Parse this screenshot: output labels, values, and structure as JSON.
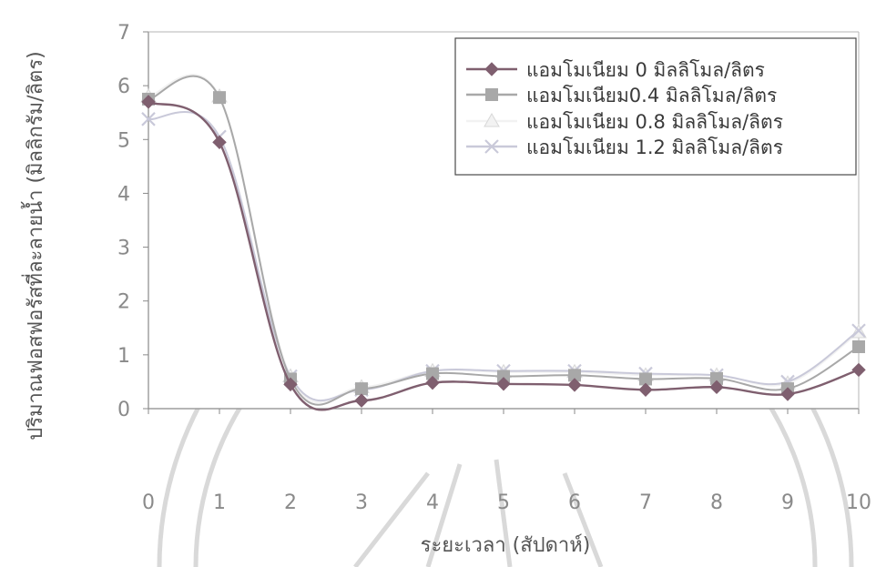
{
  "chart_data": {
    "type": "line",
    "title": "",
    "xlabel": "ระยะเวลา (สัปดาห์)",
    "ylabel": "ปริมาณฟอสฟอรัสที่ละลายน้ำ (มิลลิกรัม/ลิตร)",
    "x": [
      0,
      1,
      2,
      3,
      4,
      5,
      6,
      7,
      8,
      9,
      10
    ],
    "xlim": [
      0,
      10
    ],
    "ylim": [
      0,
      7
    ],
    "xticks": [
      "0",
      "1",
      "2",
      "3",
      "4",
      "5",
      "6",
      "7",
      "8",
      "9",
      "10"
    ],
    "yticks": [
      "0",
      "1",
      "2",
      "3",
      "4",
      "5",
      "6",
      "7"
    ],
    "grid": false,
    "legend_position": "top-right",
    "series": [
      {
        "name": "แอมโมเนียม 0 มิลลิโมล/ลิตร",
        "marker": "diamond",
        "color": "#7f5f6f",
        "values": [
          5.7,
          4.95,
          0.45,
          0.15,
          0.48,
          0.46,
          0.44,
          0.35,
          0.4,
          0.27,
          0.72
        ]
      },
      {
        "name": "แอมโมเนียม0.4 มิลลิโมล/ลิตร",
        "marker": "square",
        "color": "#a8a8a8",
        "values": [
          5.75,
          5.78,
          0.55,
          0.37,
          0.65,
          0.6,
          0.62,
          0.55,
          0.56,
          0.37,
          1.15
        ]
      },
      {
        "name": "แอมโมเนียม 0.8 มิลลิโมล/ลิตร",
        "marker": "triangle",
        "color": "#f2f2f2",
        "values": [
          5.8,
          5.8,
          0.6,
          0.4,
          0.7,
          0.68,
          0.68,
          0.62,
          0.62,
          0.47,
          1.42
        ]
      },
      {
        "name": "แอมโมเนียม 1.2 มิลลิโมล/ลิตร",
        "marker": "x",
        "color": "#c9c9d9",
        "values": [
          5.38,
          5.05,
          0.6,
          0.35,
          0.7,
          0.7,
          0.7,
          0.65,
          0.62,
          0.5,
          1.45
        ]
      }
    ]
  }
}
